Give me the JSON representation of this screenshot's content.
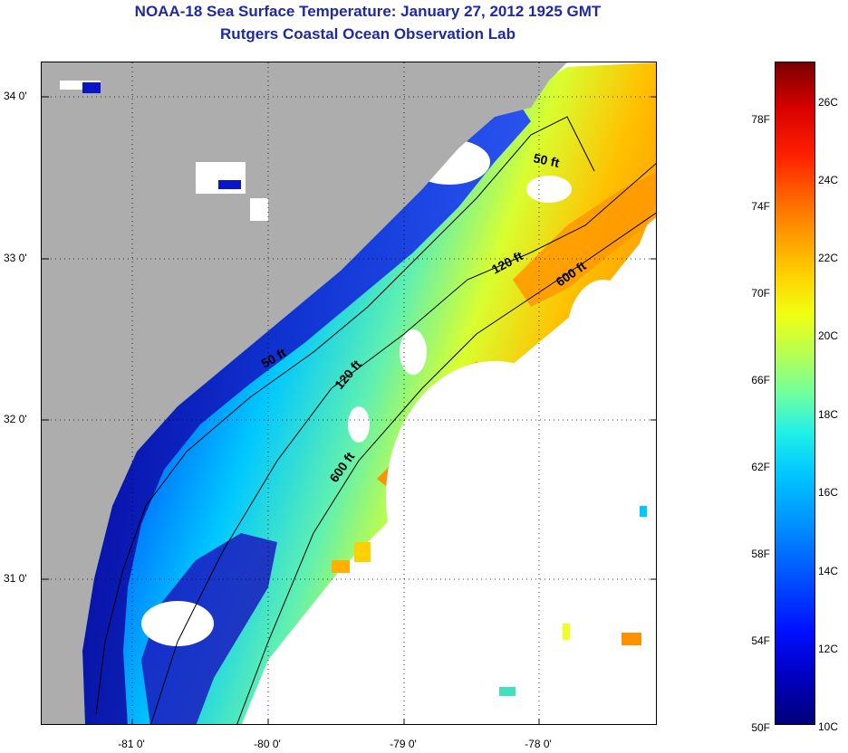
{
  "title": {
    "line1": "NOAA-18 Sea Surface Temperature:  January 27, 2012 1925 GMT",
    "line2": "Rutgers Coastal Ocean Observation Lab"
  },
  "map": {
    "lat_ticks": [
      "34 0'",
      "33 0'",
      "32 0'",
      "31 0'"
    ],
    "lon_ticks": [
      "-81 0'",
      "-80 0'",
      "-79 0'",
      "-78 0'"
    ],
    "contours": [
      "50 ft",
      "120 ft",
      "600 ft",
      "50 ft",
      "120 ft",
      "600 ft"
    ],
    "colors": {
      "land": "#adadad",
      "no_data": "#ffffff",
      "cold": "#0a14c8",
      "warm": "#ff9a00"
    }
  },
  "colorbar": {
    "fahrenheit_labels": [
      "78F",
      "74F",
      "70F",
      "66F",
      "62F",
      "58F",
      "54F",
      "50F"
    ],
    "celsius_labels": [
      "26C",
      "24C",
      "22C",
      "20C",
      "18C",
      "16C",
      "14C",
      "12C",
      "10C"
    ]
  }
}
